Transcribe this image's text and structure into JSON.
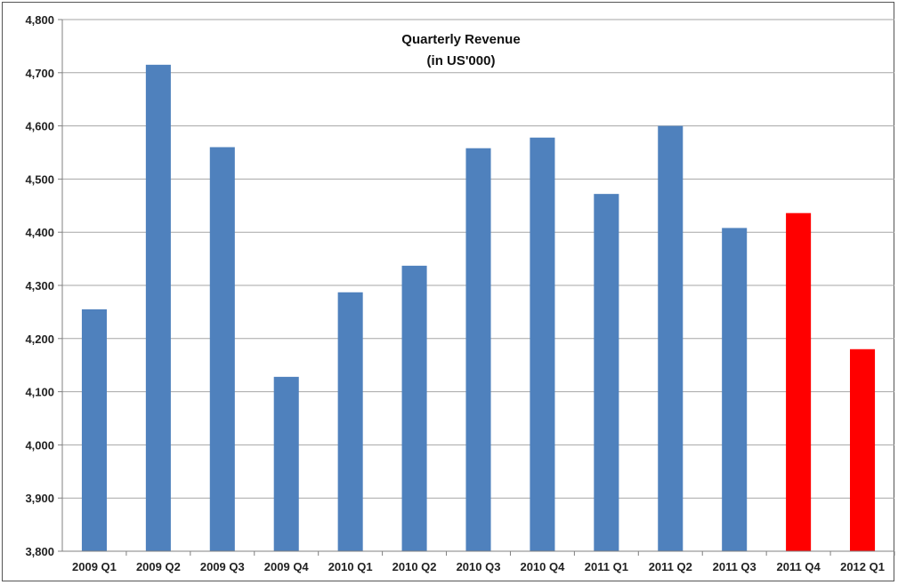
{
  "chart_data": {
    "type": "bar",
    "title": "Quarterly Revenue",
    "subtitle": "(in US'000)",
    "xlabel": "",
    "ylabel": "",
    "ylim": [
      3800,
      4800
    ],
    "yticks": [
      3800,
      3900,
      4000,
      4100,
      4200,
      4300,
      4400,
      4500,
      4600,
      4700,
      4800
    ],
    "ytick_labels": [
      "3,800",
      "3,900",
      "4,000",
      "4,100",
      "4,200",
      "4,300",
      "4,400",
      "4,500",
      "4,600",
      "4,700",
      "4,800"
    ],
    "grid": true,
    "categories": [
      "2009 Q1",
      "2009 Q2",
      "2009 Q3",
      "2009 Q4",
      "2010 Q1",
      "2010 Q2",
      "2010 Q3",
      "2010 Q4",
      "2011 Q1",
      "2011 Q2",
      "2011 Q3",
      "2011 Q4",
      "2012 Q1"
    ],
    "values": [
      4255,
      4715,
      4560,
      4128,
      4287,
      4337,
      4558,
      4578,
      4472,
      4600,
      4408,
      4436,
      4180
    ],
    "colors": [
      "#4f81bd",
      "#4f81bd",
      "#4f81bd",
      "#4f81bd",
      "#4f81bd",
      "#4f81bd",
      "#4f81bd",
      "#4f81bd",
      "#4f81bd",
      "#4f81bd",
      "#4f81bd",
      "#ff0000",
      "#ff0000"
    ]
  }
}
